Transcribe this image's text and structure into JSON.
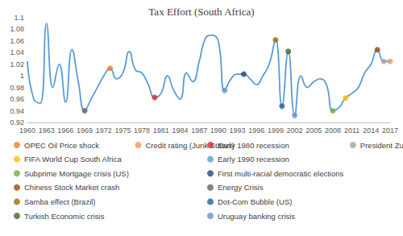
{
  "chart_data": {
    "type": "line",
    "title": "Tax Effort (South Africa)",
    "color": "#5b9bd5",
    "grid": false,
    "legend": "bottom",
    "xlim": [
      1960,
      2017
    ],
    "xticks": [
      1960,
      1963,
      1966,
      1969,
      1972,
      1975,
      1978,
      1981,
      1984,
      1987,
      1990,
      1993,
      1996,
      1999,
      2002,
      2005,
      2008,
      2011,
      2014,
      2017
    ],
    "ylim": [
      0.92,
      1.1
    ],
    "yticks": [
      0.92,
      0.94,
      0.96,
      0.98,
      1,
      1.02,
      1.04,
      1.06,
      1.08,
      1.1
    ],
    "x": [
      1960,
      1961,
      1962,
      1963,
      1964,
      1965,
      1966,
      1967,
      1968,
      1969,
      1970,
      1971,
      1972,
      1973,
      1974,
      1975,
      1976,
      1977,
      1978,
      1979,
      1980,
      1981,
      1982,
      1983,
      1984,
      1985,
      1986,
      1987,
      1988,
      1989,
      1990,
      1991,
      1992,
      1993,
      1994,
      1995,
      1996,
      1997,
      1998,
      1999,
      2000,
      2001,
      2002,
      2003,
      2004,
      2005,
      2006,
      2007,
      2008,
      2009,
      2010,
      2011,
      2012,
      2013,
      2014,
      2015,
      2016,
      2017
    ],
    "values": [
      1.025,
      0.96,
      0.953,
      1.09,
      0.98,
      1.02,
      0.955,
      1.045,
      0.99,
      0.94,
      0.96,
      0.98,
      1.0,
      1.013,
      0.995,
      1.005,
      1.042,
      1.01,
      1.005,
      0.985,
      0.963,
      0.97,
      1.0,
      0.975,
      0.96,
      1.005,
      0.99,
      1.025,
      1.065,
      1.07,
      1.06,
      0.975,
      0.995,
      1.003,
      1.003,
      0.995,
      0.985,
      1.0,
      1.02,
      1.062,
      0.948,
      1.042,
      0.932,
      1.0,
      0.98,
      0.99,
      0.995,
      0.985,
      0.94,
      0.946,
      0.962,
      0.97,
      0.98,
      1.005,
      1.02,
      1.045,
      1.025,
      1.025
    ],
    "series": [
      {
        "name": "OPEC Oil Price shock",
        "color": "#ed7d31",
        "type": "scatter",
        "marker": "circle",
        "x": [
          1973
        ],
        "values": [
          1.013
        ]
      },
      {
        "name": "Early 1980 recession",
        "color": "#e02424",
        "type": "scatter",
        "marker": "circle",
        "x": [
          1980
        ],
        "values": [
          0.963
        ]
      },
      {
        "name": "FIFA World Cup South Africa",
        "color": "#ffc000",
        "type": "scatter",
        "marker": "circle",
        "x": [
          2010
        ],
        "values": [
          0.962
        ]
      },
      {
        "name": "Early 1990 recession",
        "color": "#5b9bd5",
        "type": "scatter",
        "marker": "circle",
        "x": [
          1991
        ],
        "values": [
          0.975
        ]
      },
      {
        "name": "Subprime Mortgage crisis (US)",
        "color": "#70ad47",
        "type": "scatter",
        "marker": "circle",
        "x": [
          2008
        ],
        "values": [
          0.94
        ]
      },
      {
        "name": "First multi-racial democratic elections",
        "color": "#264478",
        "type": "scatter",
        "marker": "circle",
        "x": [
          1994
        ],
        "values": [
          1.003
        ]
      },
      {
        "name": "Chiness Stock Market crash",
        "color": "#9e480e",
        "type": "scatter",
        "marker": "circle",
        "x": [
          2015
        ],
        "values": [
          1.045
        ]
      },
      {
        "name": "Energy Crisis",
        "color": "#636363",
        "type": "scatter",
        "marker": "circle",
        "x": [
          1969
        ],
        "values": [
          0.94
        ]
      },
      {
        "name": "Samba effect (Brazil)",
        "color": "#997300",
        "type": "scatter",
        "marker": "circle",
        "x": [
          1999
        ],
        "values": [
          1.062
        ]
      },
      {
        "name": "Dot-Com Bubble (US)",
        "color": "#255e91",
        "type": "scatter",
        "marker": "circle",
        "x": [
          2000
        ],
        "values": [
          0.948
        ]
      },
      {
        "name": "Turkish Economic crisis",
        "color": "#43682b",
        "type": "scatter",
        "marker": "circle",
        "x": [
          2001
        ],
        "values": [
          1.042
        ]
      },
      {
        "name": "Uruguay banking crisis",
        "color": "#698ed0",
        "type": "scatter",
        "marker": "circle",
        "x": [
          2002
        ],
        "values": [
          0.932
        ]
      },
      {
        "name": "Credit rating (Junk Status)",
        "color": "#f1975a",
        "type": "scatter",
        "marker": "circle",
        "x": [
          2017
        ],
        "values": [
          1.025
        ]
      },
      {
        "name": "President Zuma's Cabinet reshuffle",
        "color": "#a5a5a5",
        "type": "scatter",
        "marker": "circle",
        "x": [
          2016
        ],
        "values": [
          1.025
        ]
      }
    ]
  }
}
